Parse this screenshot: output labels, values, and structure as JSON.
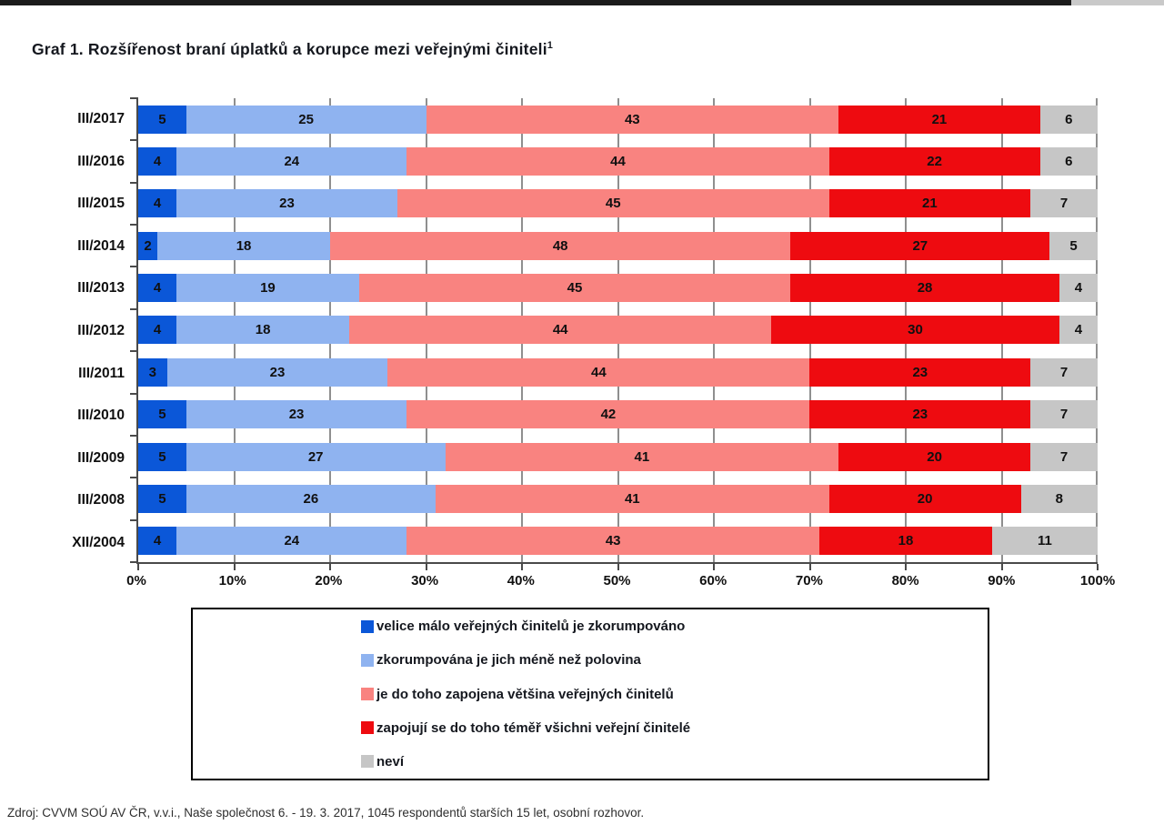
{
  "page": {
    "title": "Graf 1. Rozšířenost braní úplatků a korupce mezi veřejnými činiteli",
    "title_superscript": "1",
    "source_note": "Zdroj: CVVM SOÚ AV ČR, v.v.i., Naše společnost 6. - 19. 3. 2017, 1045 respondentů starších 15 let, osobní rozhovor."
  },
  "chart_data": {
    "type": "bar",
    "orientation": "horizontal",
    "stacked": true,
    "stacked_to_100_percent": true,
    "grid": true,
    "legend_position": "bottom",
    "value_labels": "inside-center",
    "categories": [
      "III/2017",
      "III/2016",
      "III/2015",
      "III/2014",
      "III/2013",
      "III/2012",
      "III/2011",
      "III/2010",
      "III/2009",
      "III/2008",
      "XII/2004"
    ],
    "series": [
      {
        "name": "velice málo veřejných činitelů je zkorumpováno",
        "color": "#0b57d8",
        "values": [
          5,
          4,
          4,
          2,
          4,
          4,
          3,
          5,
          5,
          5,
          4
        ]
      },
      {
        "name": "zkorumpována je jich méně než polovina",
        "color": "#8fb3f0",
        "values": [
          25,
          24,
          23,
          18,
          19,
          18,
          23,
          23,
          27,
          26,
          24
        ]
      },
      {
        "name": "je do toho zapojena většina veřejných činitelů",
        "color": "#f98380",
        "values": [
          43,
          44,
          45,
          48,
          45,
          44,
          44,
          42,
          41,
          41,
          43
        ]
      },
      {
        "name": "zapojují se do toho téměř všichni veřejní činitelé",
        "color": "#ee0b10",
        "values": [
          21,
          22,
          21,
          27,
          28,
          30,
          23,
          23,
          20,
          20,
          18
        ]
      },
      {
        "name": "neví",
        "color": "#c6c6c6",
        "values": [
          6,
          6,
          7,
          5,
          4,
          4,
          7,
          7,
          7,
          8,
          11
        ]
      }
    ],
    "x_axis": {
      "range": [
        0,
        100
      ],
      "tick_step": 10,
      "tick_labels": [
        "0%",
        "10%",
        "20%",
        "30%",
        "40%",
        "50%",
        "60%",
        "70%",
        "80%",
        "90%",
        "100%"
      ]
    }
  }
}
